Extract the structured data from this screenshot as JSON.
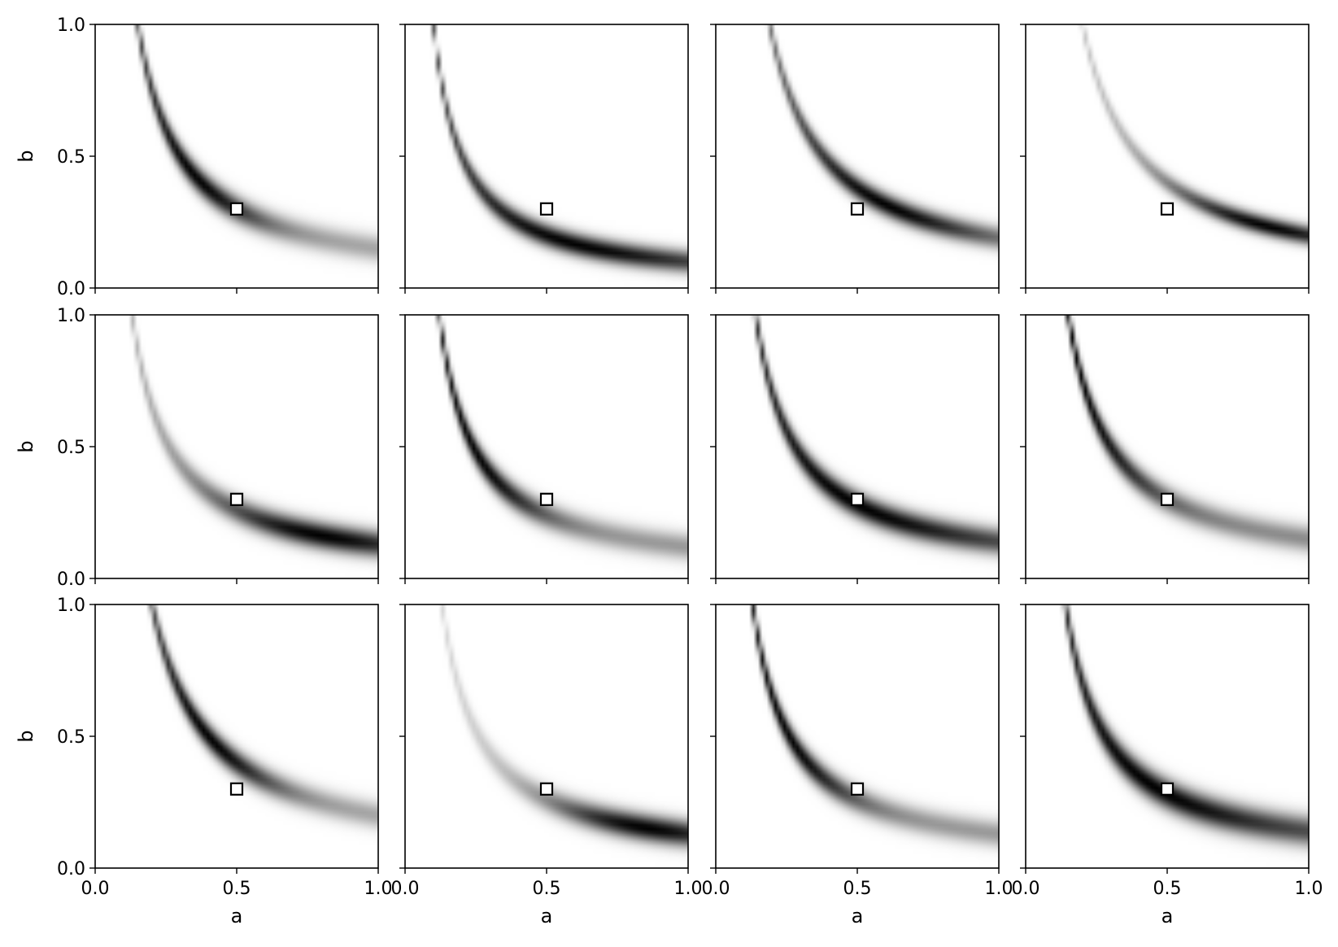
{
  "chart_data": {
    "type": "heatmap",
    "grid": {
      "rows": 3,
      "cols": 4
    },
    "xlabel": "a",
    "ylabel": "b",
    "xlim": [
      0.0,
      1.0
    ],
    "ylim": [
      0.0,
      1.0
    ],
    "xticks": [
      "0.0",
      "0.5",
      "1.0"
    ],
    "yticks": [
      "0.0",
      "0.5",
      "1.0"
    ],
    "colormap": "gray_r",
    "colors": {
      "ink": "#000000",
      "background": "#ffffff",
      "marker_fill": "#ffffff",
      "marker_edge": "#000000"
    },
    "marker": {
      "shape": "square",
      "a": 0.5,
      "b": 0.3
    },
    "description_model": "density along curve a*b = k",
    "panels": [
      {
        "row": 0,
        "col": 0,
        "k": 0.15,
        "width": 0.035,
        "peak_a": 0.35,
        "spread_a": 0.25,
        "floor": 0.35
      },
      {
        "row": 0,
        "col": 1,
        "k": 0.1,
        "width": 0.03,
        "peak_a": 0.6,
        "spread_a": 0.45,
        "floor": 0.55
      },
      {
        "row": 0,
        "col": 2,
        "k": 0.19,
        "width": 0.03,
        "peak_a": 0.6,
        "spread_a": 0.35,
        "floor": 0.4
      },
      {
        "row": 0,
        "col": 3,
        "k": 0.2,
        "width": 0.025,
        "peak_a": 0.85,
        "spread_a": 0.35,
        "floor": 0.2
      },
      {
        "row": 1,
        "col": 0,
        "k": 0.13,
        "width": 0.035,
        "peak_a": 0.8,
        "spread_a": 0.4,
        "floor": 0.25
      },
      {
        "row": 1,
        "col": 1,
        "k": 0.12,
        "width": 0.035,
        "peak_a": 0.25,
        "spread_a": 0.25,
        "floor": 0.4
      },
      {
        "row": 1,
        "col": 2,
        "k": 0.14,
        "width": 0.035,
        "peak_a": 0.5,
        "spread_a": 0.45,
        "floor": 0.6
      },
      {
        "row": 1,
        "col": 3,
        "k": 0.15,
        "width": 0.035,
        "peak_a": 0.18,
        "spread_a": 0.3,
        "floor": 0.45
      },
      {
        "row": 2,
        "col": 0,
        "k": 0.2,
        "width": 0.035,
        "peak_a": 0.4,
        "spread_a": 0.25,
        "floor": 0.35
      },
      {
        "row": 2,
        "col": 1,
        "k": 0.13,
        "width": 0.035,
        "peak_a": 0.85,
        "spread_a": 0.35,
        "floor": 0.15
      },
      {
        "row": 2,
        "col": 2,
        "k": 0.13,
        "width": 0.035,
        "peak_a": 0.25,
        "spread_a": 0.25,
        "floor": 0.4
      },
      {
        "row": 2,
        "col": 3,
        "k": 0.14,
        "width": 0.04,
        "peak_a": 0.45,
        "spread_a": 0.4,
        "floor": 0.65
      }
    ]
  }
}
